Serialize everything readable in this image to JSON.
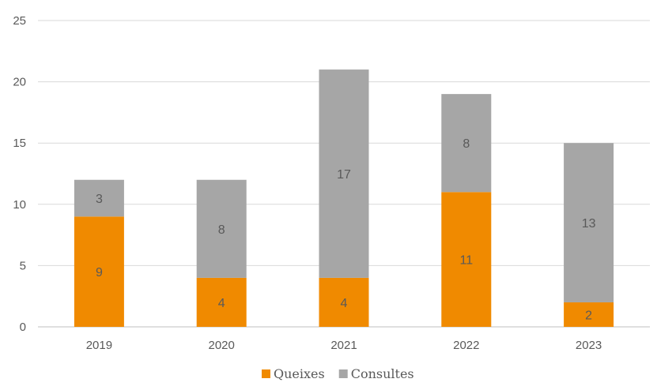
{
  "chart_data": {
    "type": "bar",
    "stacked": true,
    "categories": [
      "2019",
      "2020",
      "2021",
      "2022",
      "2023"
    ],
    "series": [
      {
        "name": "Queixes",
        "values": [
          9,
          4,
          4,
          11,
          2
        ],
        "color": "#F08A00"
      },
      {
        "name": "Consultes",
        "values": [
          3,
          8,
          17,
          8,
          13
        ],
        "color": "#A6A6A6"
      }
    ],
    "ylim": [
      0,
      25
    ],
    "yticks": [
      "0",
      "5",
      "10",
      "15",
      "20",
      "25"
    ],
    "grid": true,
    "legend": "bottom-center",
    "title": "",
    "xlabel": "",
    "ylabel": ""
  }
}
